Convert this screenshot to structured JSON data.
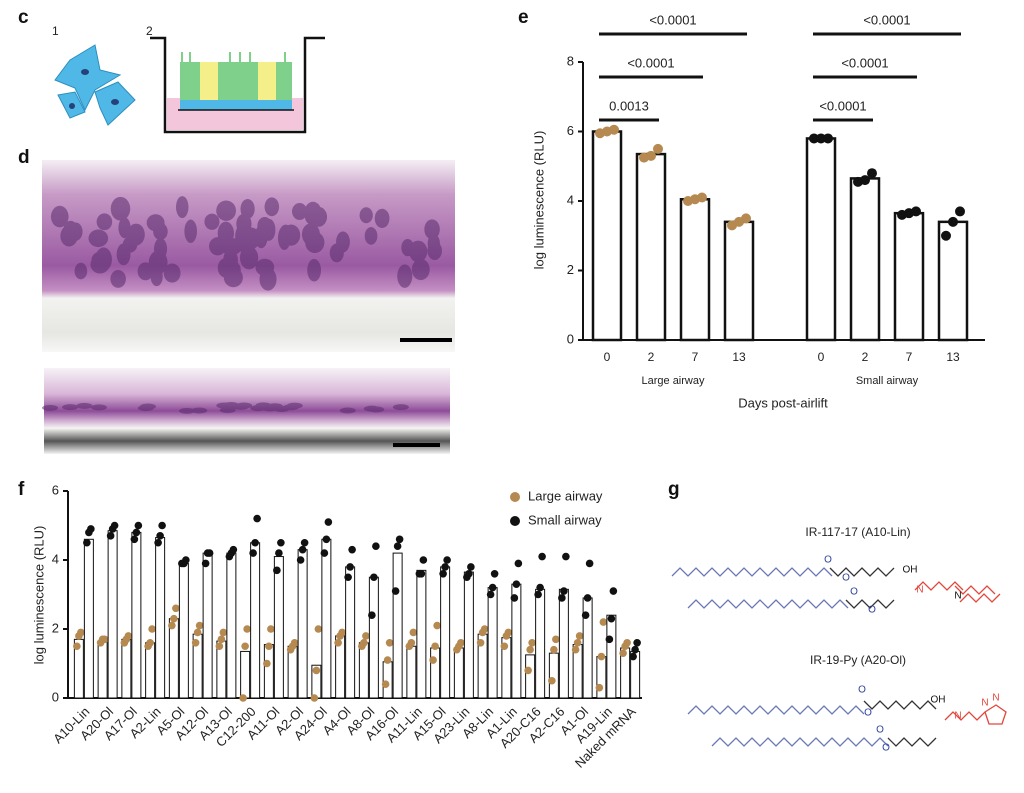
{
  "panel_labels": {
    "c": "c",
    "d": "d",
    "e": "e",
    "f": "f",
    "g": "g"
  },
  "c": {
    "steps": [
      "1",
      "2"
    ]
  },
  "g": {
    "structures": [
      {
        "name": "IR-117-17 (A10-Lin)",
        "atoms": [
          "O",
          "O",
          "OH",
          "N",
          "N",
          "O",
          "O"
        ]
      },
      {
        "name": "IR-19-Py (A20-Ol)",
        "atoms": [
          "O",
          "O",
          "OH",
          "N",
          "N",
          "N",
          "O",
          "O"
        ]
      }
    ]
  },
  "chart_data": [
    {
      "type": "grouped-bar-dots",
      "ylabel": "log luminescence (RLU)",
      "xlabel": "Days post-airlift",
      "ylim": [
        0,
        8
      ],
      "yticks": [
        0,
        2,
        4,
        6,
        8
      ],
      "bar_color": "#ffffff",
      "groups": [
        {
          "name": "Large airway",
          "color": "#b5894f",
          "categories": [
            "0",
            "2",
            "7",
            "13"
          ],
          "values": [
            6.0,
            5.35,
            4.05,
            3.4
          ],
          "points": [
            [
              5.95,
              6.0,
              6.05
            ],
            [
              5.25,
              5.3,
              5.5
            ],
            [
              4.0,
              4.05,
              4.1
            ],
            [
              3.3,
              3.4,
              3.5
            ]
          ],
          "comparisons": [
            {
              "label": "0.0013",
              "between": [
                "0",
                "2"
              ]
            },
            {
              "label": "<0.0001",
              "between": [
                "0",
                "7"
              ]
            },
            {
              "label": "<0.0001",
              "between": [
                "0",
                "13"
              ]
            }
          ]
        },
        {
          "name": "Small airway",
          "color": "#111111",
          "categories": [
            "0",
            "2",
            "7",
            "13"
          ],
          "values": [
            5.8,
            4.65,
            3.65,
            3.4
          ],
          "points": [
            [
              5.8,
              5.8,
              5.8
            ],
            [
              4.55,
              4.6,
              4.8
            ],
            [
              3.6,
              3.65,
              3.7
            ],
            [
              3.0,
              3.4,
              3.7
            ]
          ],
          "comparisons": [
            {
              "label": "<0.0001",
              "between": [
                "0",
                "2"
              ]
            },
            {
              "label": "<0.0001",
              "between": [
                "0",
                "7"
              ]
            },
            {
              "label": "<0.0001",
              "between": [
                "0",
                "13"
              ]
            }
          ]
        }
      ]
    },
    {
      "type": "bar-dots",
      "ylabel": "log luminescence (RLU)",
      "ylim": [
        0,
        6
      ],
      "yticks": [
        0,
        2,
        4,
        6
      ],
      "legend": "upper right",
      "bar_color": "#ffffff",
      "categories": [
        "A10-Lin",
        "A20-Ol",
        "A17-Ol",
        "A2-Lin",
        "A5-Ol",
        "A12-Ol",
        "A13-Ol",
        "C12-200",
        "A11-Ol",
        "A2-Ol",
        "A24-Ol",
        "A4-Ol",
        "A8-Ol",
        "A16-Ol",
        "A11-Lin",
        "A15-Ol",
        "A23-Lin",
        "A8-Lin",
        "A1-Lin",
        "A20-C16",
        "A2-C16",
        "A1-Ol",
        "A19-Lin",
        "Naked mRNA"
      ],
      "series": [
        {
          "name": "Large airway",
          "color": "#b5894f",
          "values": [
            1.7,
            1.65,
            1.7,
            1.6,
            2.3,
            1.85,
            1.65,
            1.35,
            1.55,
            1.5,
            0.95,
            1.8,
            1.6,
            1.05,
            1.5,
            1.45,
            1.45,
            1.85,
            1.75,
            1.25,
            1.3,
            1.55,
            1.2,
            1.45
          ],
          "points": [
            [
              1.5,
              1.8,
              1.9
            ],
            [
              1.6,
              1.7,
              1.7
            ],
            [
              1.6,
              1.7,
              1.8
            ],
            [
              1.5,
              1.6,
              2.0
            ],
            [
              2.1,
              2.3,
              2.6
            ],
            [
              1.6,
              1.9,
              2.1
            ],
            [
              1.5,
              1.7,
              1.9
            ],
            [
              0,
              1.5,
              2.0
            ],
            [
              1.0,
              1.5,
              2.0
            ],
            [
              1.4,
              1.5,
              1.6
            ],
            [
              0,
              0.8,
              2.0
            ],
            [
              1.6,
              1.8,
              1.9
            ],
            [
              1.5,
              1.6,
              1.8
            ],
            [
              0.4,
              1.1,
              1.6
            ],
            [
              1.5,
              1.6,
              1.9
            ],
            [
              1.1,
              1.5,
              2.1
            ],
            [
              1.4,
              1.5,
              1.6
            ],
            [
              1.6,
              1.9,
              2.0
            ],
            [
              1.5,
              1.8,
              1.9
            ],
            [
              0.8,
              1.4,
              1.6
            ],
            [
              0.5,
              1.4,
              1.7
            ],
            [
              1.4,
              1.6,
              1.8
            ],
            [
              0.3,
              1.2,
              2.2
            ],
            [
              1.3,
              1.5,
              1.6
            ]
          ]
        },
        {
          "name": "Small airway",
          "color": "#111111",
          "values": [
            4.6,
            4.85,
            4.8,
            4.65,
            3.9,
            4.2,
            4.2,
            4.5,
            4.1,
            4.3,
            4.6,
            3.8,
            3.5,
            4.2,
            3.7,
            3.8,
            3.65,
            3.2,
            3.3,
            3.15,
            3.15,
            2.9,
            2.4,
            1.35
          ],
          "points": [
            [
              4.5,
              4.8,
              4.9
            ],
            [
              4.7,
              4.9,
              5.0
            ],
            [
              4.6,
              4.8,
              5.0
            ],
            [
              4.5,
              4.7,
              5.0
            ],
            [
              3.9,
              3.9,
              4.0
            ],
            [
              3.9,
              4.2,
              4.2
            ],
            [
              4.1,
              4.2,
              4.3
            ],
            [
              4.2,
              4.5,
              5.2
            ],
            [
              3.7,
              4.2,
              4.5
            ],
            [
              4.0,
              4.3,
              4.5
            ],
            [
              4.2,
              4.6,
              5.1
            ],
            [
              3.5,
              3.8,
              4.3
            ],
            [
              2.4,
              3.5,
              4.4
            ],
            [
              3.1,
              4.4,
              4.6
            ],
            [
              3.6,
              3.6,
              4.0
            ],
            [
              3.6,
              3.8,
              4.0
            ],
            [
              3.5,
              3.6,
              3.8
            ],
            [
              3.0,
              3.2,
              3.6
            ],
            [
              2.9,
              3.3,
              3.9
            ],
            [
              3.0,
              3.2,
              4.1
            ],
            [
              2.9,
              3.1,
              4.1
            ],
            [
              2.4,
              2.9,
              3.9
            ],
            [
              1.7,
              2.3,
              3.1
            ],
            [
              1.2,
              1.4,
              1.6
            ]
          ]
        }
      ]
    }
  ]
}
